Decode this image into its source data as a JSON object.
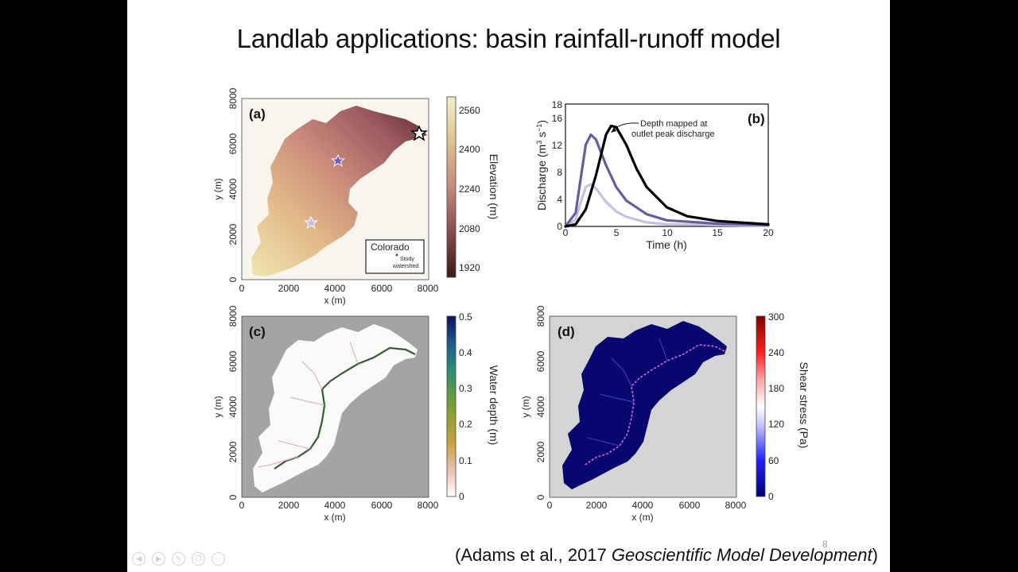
{
  "slide": {
    "title": "Landlab applications: basin rainfall-runoff model",
    "page_number": "8",
    "citation_prefix": "(Adams et al., 2017 ",
    "citation_journal": "Geoscientific Model Development",
    "citation_suffix": ")",
    "nav_icons": [
      "previous-icon",
      "next-icon",
      "pen-icon",
      "copy-icon",
      "more-icon"
    ]
  },
  "panel_a": {
    "label": "(a)",
    "x_label": "x (m)",
    "y_label": "y (m)",
    "x_ticks": [
      "0",
      "2000",
      "4000",
      "6000",
      "8000"
    ],
    "y_ticks": [
      "0",
      "2000",
      "4000",
      "6000",
      "8000"
    ],
    "colorbar_label": "Elevation (m)",
    "colorbar_ticks": [
      "1920",
      "2080",
      "2240",
      "2400",
      "2560"
    ],
    "inset_title": "Colorado",
    "inset_label_1": "Study",
    "inset_label_2": "watershed"
  },
  "panel_b": {
    "label": "(b)",
    "x_label": "Time (h)",
    "y_label": "Discharge (m",
    "y_label_sup1": "3",
    "y_label_mid": " s",
    "y_label_sup2": "−1",
    "y_label_end": ")",
    "x_ticks": [
      "0",
      "5",
      "10",
      "15",
      "20"
    ],
    "y_ticks": [
      "0",
      "4",
      "8",
      "12",
      "16"
    ],
    "y_top_tick": "18",
    "annotation_1": "Depth mapped at",
    "annotation_2": "outlet peak discharge"
  },
  "panel_c": {
    "label": "(c)",
    "x_label": "x (m)",
    "y_label": "y (m)",
    "x_ticks": [
      "0",
      "2000",
      "4000",
      "6000",
      "8000"
    ],
    "y_ticks": [
      "0",
      "2000",
      "4000",
      "6000",
      "8000"
    ],
    "colorbar_label": "Water depth (m)",
    "colorbar_ticks": [
      "0",
      "0.1",
      "0.2",
      "0.3",
      "0.4",
      "0.5"
    ]
  },
  "panel_d": {
    "label": "(d)",
    "x_label": "x (m)",
    "y_label": "y (m)",
    "x_ticks": [
      "0",
      "2000",
      "4000",
      "6000",
      "8000"
    ],
    "y_ticks": [
      "0",
      "2000",
      "4000",
      "6000",
      "8000"
    ],
    "colorbar_label": "Shear stress (Pa)",
    "colorbar_ticks": [
      "0",
      "60",
      "120",
      "180",
      "240",
      "300"
    ]
  },
  "chart_data": {
    "type": "line",
    "x_unit": "h",
    "xlim": [
      0,
      20
    ],
    "ylim": [
      0,
      18
    ],
    "series": [
      {
        "color": "#000000",
        "x": [
          0,
          1,
          2,
          3,
          4,
          4.5,
          5,
          6,
          7,
          8,
          10,
          12,
          15,
          20
        ],
        "y": [
          0,
          0.3,
          2.5,
          7.5,
          13.5,
          14.8,
          14.6,
          12.0,
          8.5,
          5.8,
          2.8,
          1.5,
          0.8,
          0.3
        ]
      },
      {
        "color": "#6a5a9e",
        "x": [
          0,
          1,
          1.5,
          2,
          2.5,
          3,
          4,
          5,
          6,
          8,
          10,
          15,
          20
        ],
        "y": [
          0,
          2,
          7,
          12,
          13.5,
          12.8,
          9,
          5.8,
          3.8,
          1.8,
          0.9,
          0.4,
          0.2
        ]
      },
      {
        "color": "#c6c2de",
        "x": [
          0,
          1,
          1.5,
          2,
          2.5,
          3,
          4,
          5,
          6,
          8,
          10,
          20
        ],
        "y": [
          0,
          1,
          3.5,
          5.8,
          6.2,
          5.6,
          3.6,
          2.2,
          1.4,
          0.6,
          0.3,
          0.1
        ]
      }
    ]
  }
}
